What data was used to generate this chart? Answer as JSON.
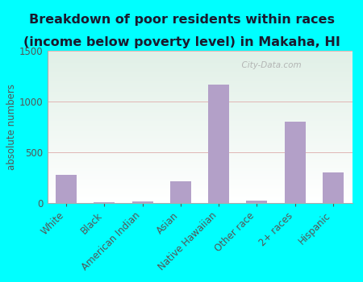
{
  "title_line1": "Breakdown of poor residents within races",
  "title_line2": "(income below poverty level) in Makaha, HI",
  "categories": [
    "White",
    "Black",
    "American Indian",
    "Asian",
    "Native Hawaiian",
    "Other race",
    "2+ races",
    "Hispanic"
  ],
  "values": [
    275,
    10,
    12,
    215,
    1165,
    20,
    800,
    305
  ],
  "bar_color": "#b3a0c8",
  "ylabel": "absolute numbers",
  "ylim": [
    0,
    1500
  ],
  "yticks": [
    0,
    500,
    1000,
    1500
  ],
  "bg_top": "#e0f0da",
  "bg_bottom": "#f5fff5",
  "bg_right": "#e0eef8",
  "outer_bg": "#00ffff",
  "title_fontsize": 11.5,
  "label_fontsize": 8.5,
  "tick_fontsize": 8.5,
  "watermark": "  City-Data.com",
  "grid_color": "#ddaaaa",
  "title_color": "#1a1a2e",
  "axis_color": "#555555"
}
